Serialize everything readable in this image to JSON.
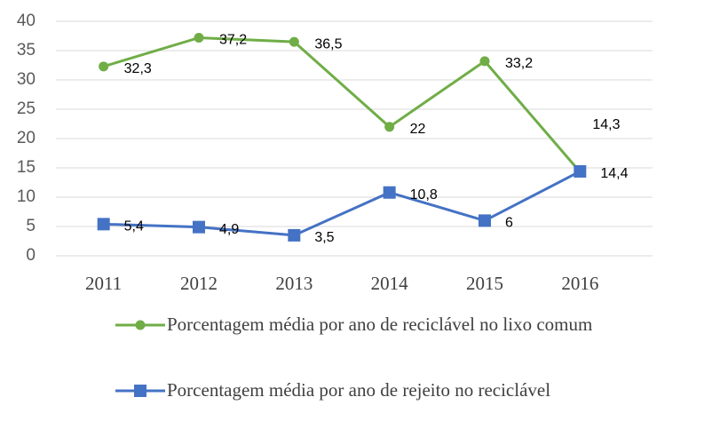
{
  "chart_data": {
    "type": "line",
    "categories": [
      "2011",
      "2012",
      "2013",
      "2014",
      "2015",
      "2016"
    ],
    "series": [
      {
        "name": "Porcentagem média por ano de reciclável no lixo comum",
        "color": "#70ad47",
        "marker": "circle",
        "values": [
          32.3,
          37.2,
          36.5,
          22,
          33.2,
          14.3
        ],
        "value_labels": [
          "32,3",
          "37,2",
          "36,5",
          "22",
          "33,2",
          "14,3"
        ]
      },
      {
        "name": "Porcentagem média por ano de rejeito no reciclável",
        "color": "#4472c4",
        "marker": "square",
        "values": [
          5.4,
          4.9,
          3.5,
          10.8,
          6,
          14.4
        ],
        "value_labels": [
          "5,4",
          "4,9",
          "3,5",
          "10,8",
          "6",
          "14,4"
        ]
      }
    ],
    "ylim": [
      0,
      40
    ],
    "yticks": [
      0,
      5,
      10,
      15,
      20,
      25,
      30,
      35,
      40
    ],
    "grid": true
  }
}
